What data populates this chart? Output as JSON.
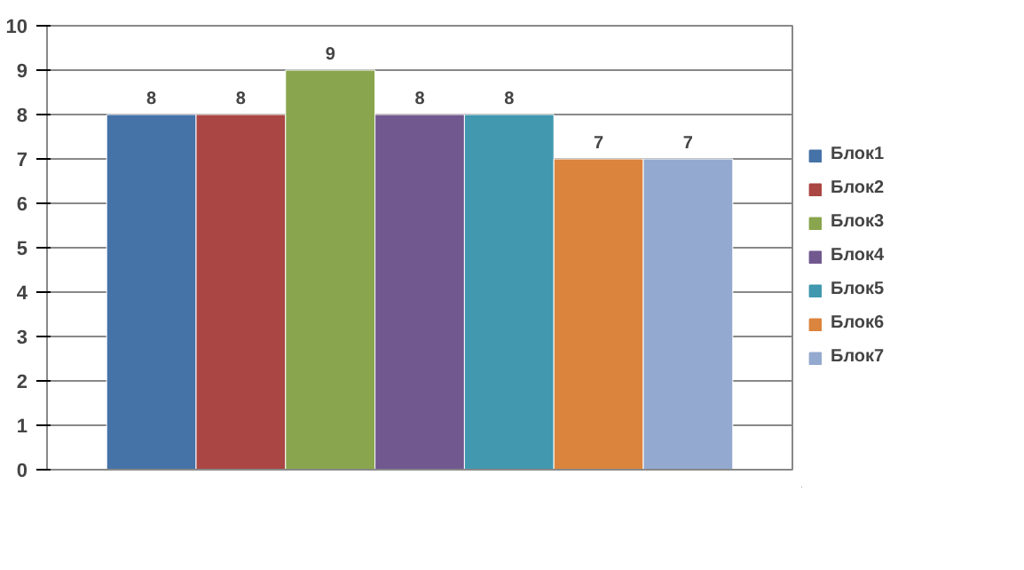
{
  "chart_data": {
    "type": "bar",
    "categories": [
      null
    ],
    "series": [
      {
        "name": "Блок1",
        "color": "#4572a7",
        "values": [
          8
        ]
      },
      {
        "name": "Блок2",
        "color": "#aa4643",
        "values": [
          8
        ]
      },
      {
        "name": "Блок3",
        "color": "#89a54e",
        "values": [
          9
        ]
      },
      {
        "name": "Блок4",
        "color": "#71588f",
        "values": [
          8
        ]
      },
      {
        "name": "Блок5",
        "color": "#4198af",
        "values": [
          8
        ]
      },
      {
        "name": "Блок6",
        "color": "#db843d",
        "values": [
          7
        ]
      },
      {
        "name": "Блок7",
        "color": "#93a9cf",
        "values": [
          7
        ]
      }
    ],
    "ylim": [
      0,
      10
    ],
    "yticks": [
      0,
      1,
      2,
      3,
      4,
      5,
      6,
      7,
      8,
      9,
      10
    ],
    "grid": "y",
    "legend": "right",
    "data_labels": true
  }
}
